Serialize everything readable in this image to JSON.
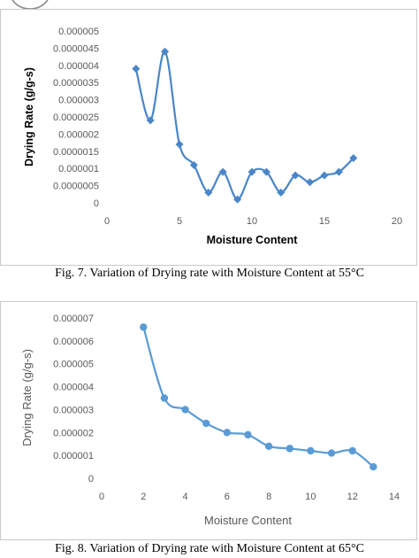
{
  "figures": [
    {
      "caption": "Fig. 7. Variation of Drying rate with Moisture Content at 55°C",
      "chart": {
        "type": "line",
        "marker": "diamond",
        "line_color": "#4a86c8",
        "xlabel": "Moisture Content",
        "ylabel": "Drying Rate (g/g-s)",
        "xlim": [
          0,
          20
        ],
        "ylim": [
          0,
          5e-06
        ],
        "x_ticks": [
          "0",
          "5",
          "10",
          "15",
          "20"
        ],
        "y_ticks": [
          "0",
          "0.0000005",
          "0.000001",
          "0.0000015",
          "0.000002",
          "0.0000025",
          "0.000003",
          "0.0000035",
          "0.000004",
          "0.0000045",
          "0.000005"
        ],
        "grid": false,
        "smooth": true,
        "series": [
          {
            "x": [
              2,
              3,
              4,
              5,
              6,
              7,
              8,
              9,
              10,
              11,
              12,
              13,
              14,
              15,
              16,
              17
            ],
            "y": [
              3.9e-06,
              2.4e-06,
              4.4e-06,
              1.7e-06,
              1.1e-06,
              3e-07,
              9e-07,
              1e-07,
              9e-07,
              9e-07,
              3e-07,
              8e-07,
              6e-07,
              8e-07,
              9e-07,
              1.3e-06
            ]
          }
        ]
      }
    },
    {
      "caption": "Fig. 8. Variation of Drying rate with Moisture Content at 65°C",
      "chart": {
        "type": "line",
        "marker": "circle",
        "line_color": "#5b9bd5",
        "xlabel": "Moisture Content",
        "ylabel": "Drying Rate (g/g-s)",
        "xlim": [
          0,
          14
        ],
        "ylim": [
          0,
          7e-06
        ],
        "x_ticks": [
          "0",
          "2",
          "4",
          "6",
          "8",
          "10",
          "12",
          "14"
        ],
        "y_ticks": [
          "0",
          "0.000001",
          "0.000002",
          "0.000003",
          "0.000004",
          "0.000005",
          "0.000006",
          "0.000007"
        ],
        "grid": false,
        "smooth": true,
        "series": [
          {
            "x": [
              2,
              3,
              4,
              5,
              6,
              7,
              8,
              9,
              10,
              11,
              12,
              13
            ],
            "y": [
              6.6e-06,
              3.5e-06,
              3e-06,
              2.4e-06,
              2e-06,
              1.9e-06,
              1.4e-06,
              1.3e-06,
              1.2e-06,
              1.1e-06,
              1.2e-06,
              5e-07
            ]
          }
        ]
      }
    }
  ]
}
